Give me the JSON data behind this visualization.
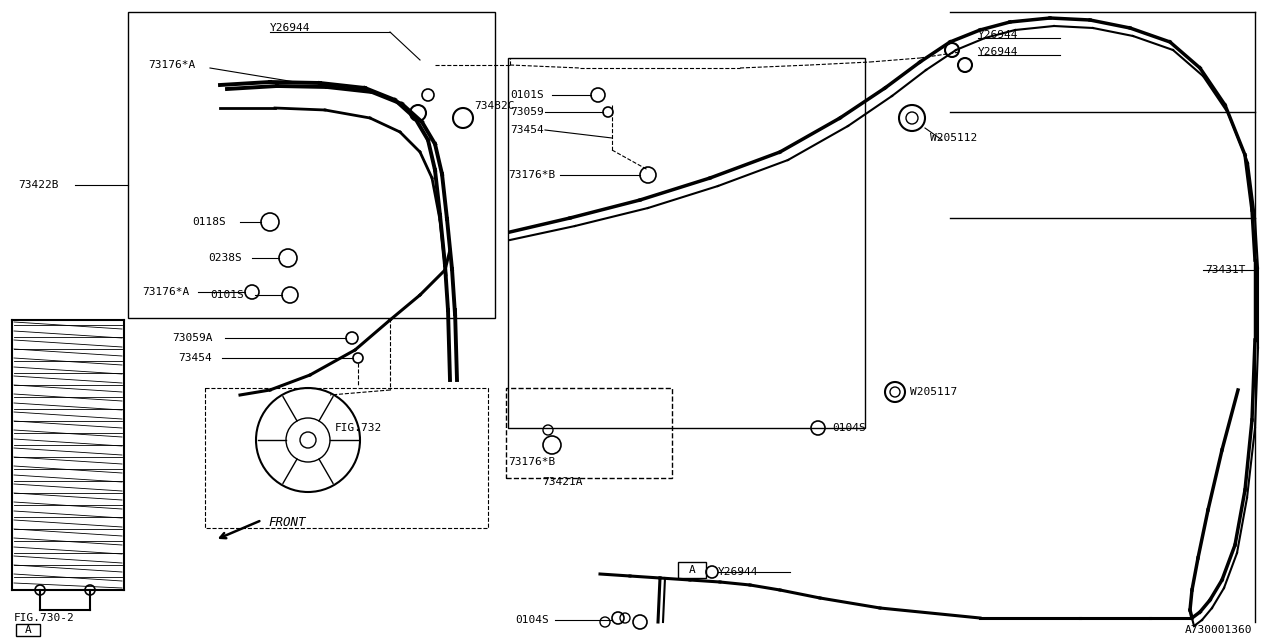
{
  "bg_color": "#ffffff",
  "line_color": "#000000",
  "fig_id": "A730001360",
  "labels": {
    "Y26944_top": "Y26944",
    "73176A_top": "73176*A",
    "73482C": "73482C",
    "73422B": "73422B",
    "0118S": "0118S",
    "0238S": "0238S",
    "0101S_left": "0101S",
    "73059A": "73059A",
    "73454_left": "73454",
    "73176A_bot": "73176*A",
    "FIG732": "FIG.732",
    "FIG730": "FIG.730-2",
    "FRONT": "FRONT",
    "Y26944_tr1": "Y26944",
    "Y26944_tr2": "Y26944",
    "0101S_right": "0101S",
    "73059_right": "73059",
    "73454_right": "73454",
    "73176B_top": "73176*B",
    "W205112": "W205112",
    "73431T": "73431T",
    "W205117": "W205117",
    "0104S_right": "0104S",
    "73176B_bot": "73176*B",
    "73421A": "73421A",
    "A_left": "A",
    "A_right": "A",
    "Y26944_bot": "Y26944",
    "0104S_bot": "0104S"
  }
}
